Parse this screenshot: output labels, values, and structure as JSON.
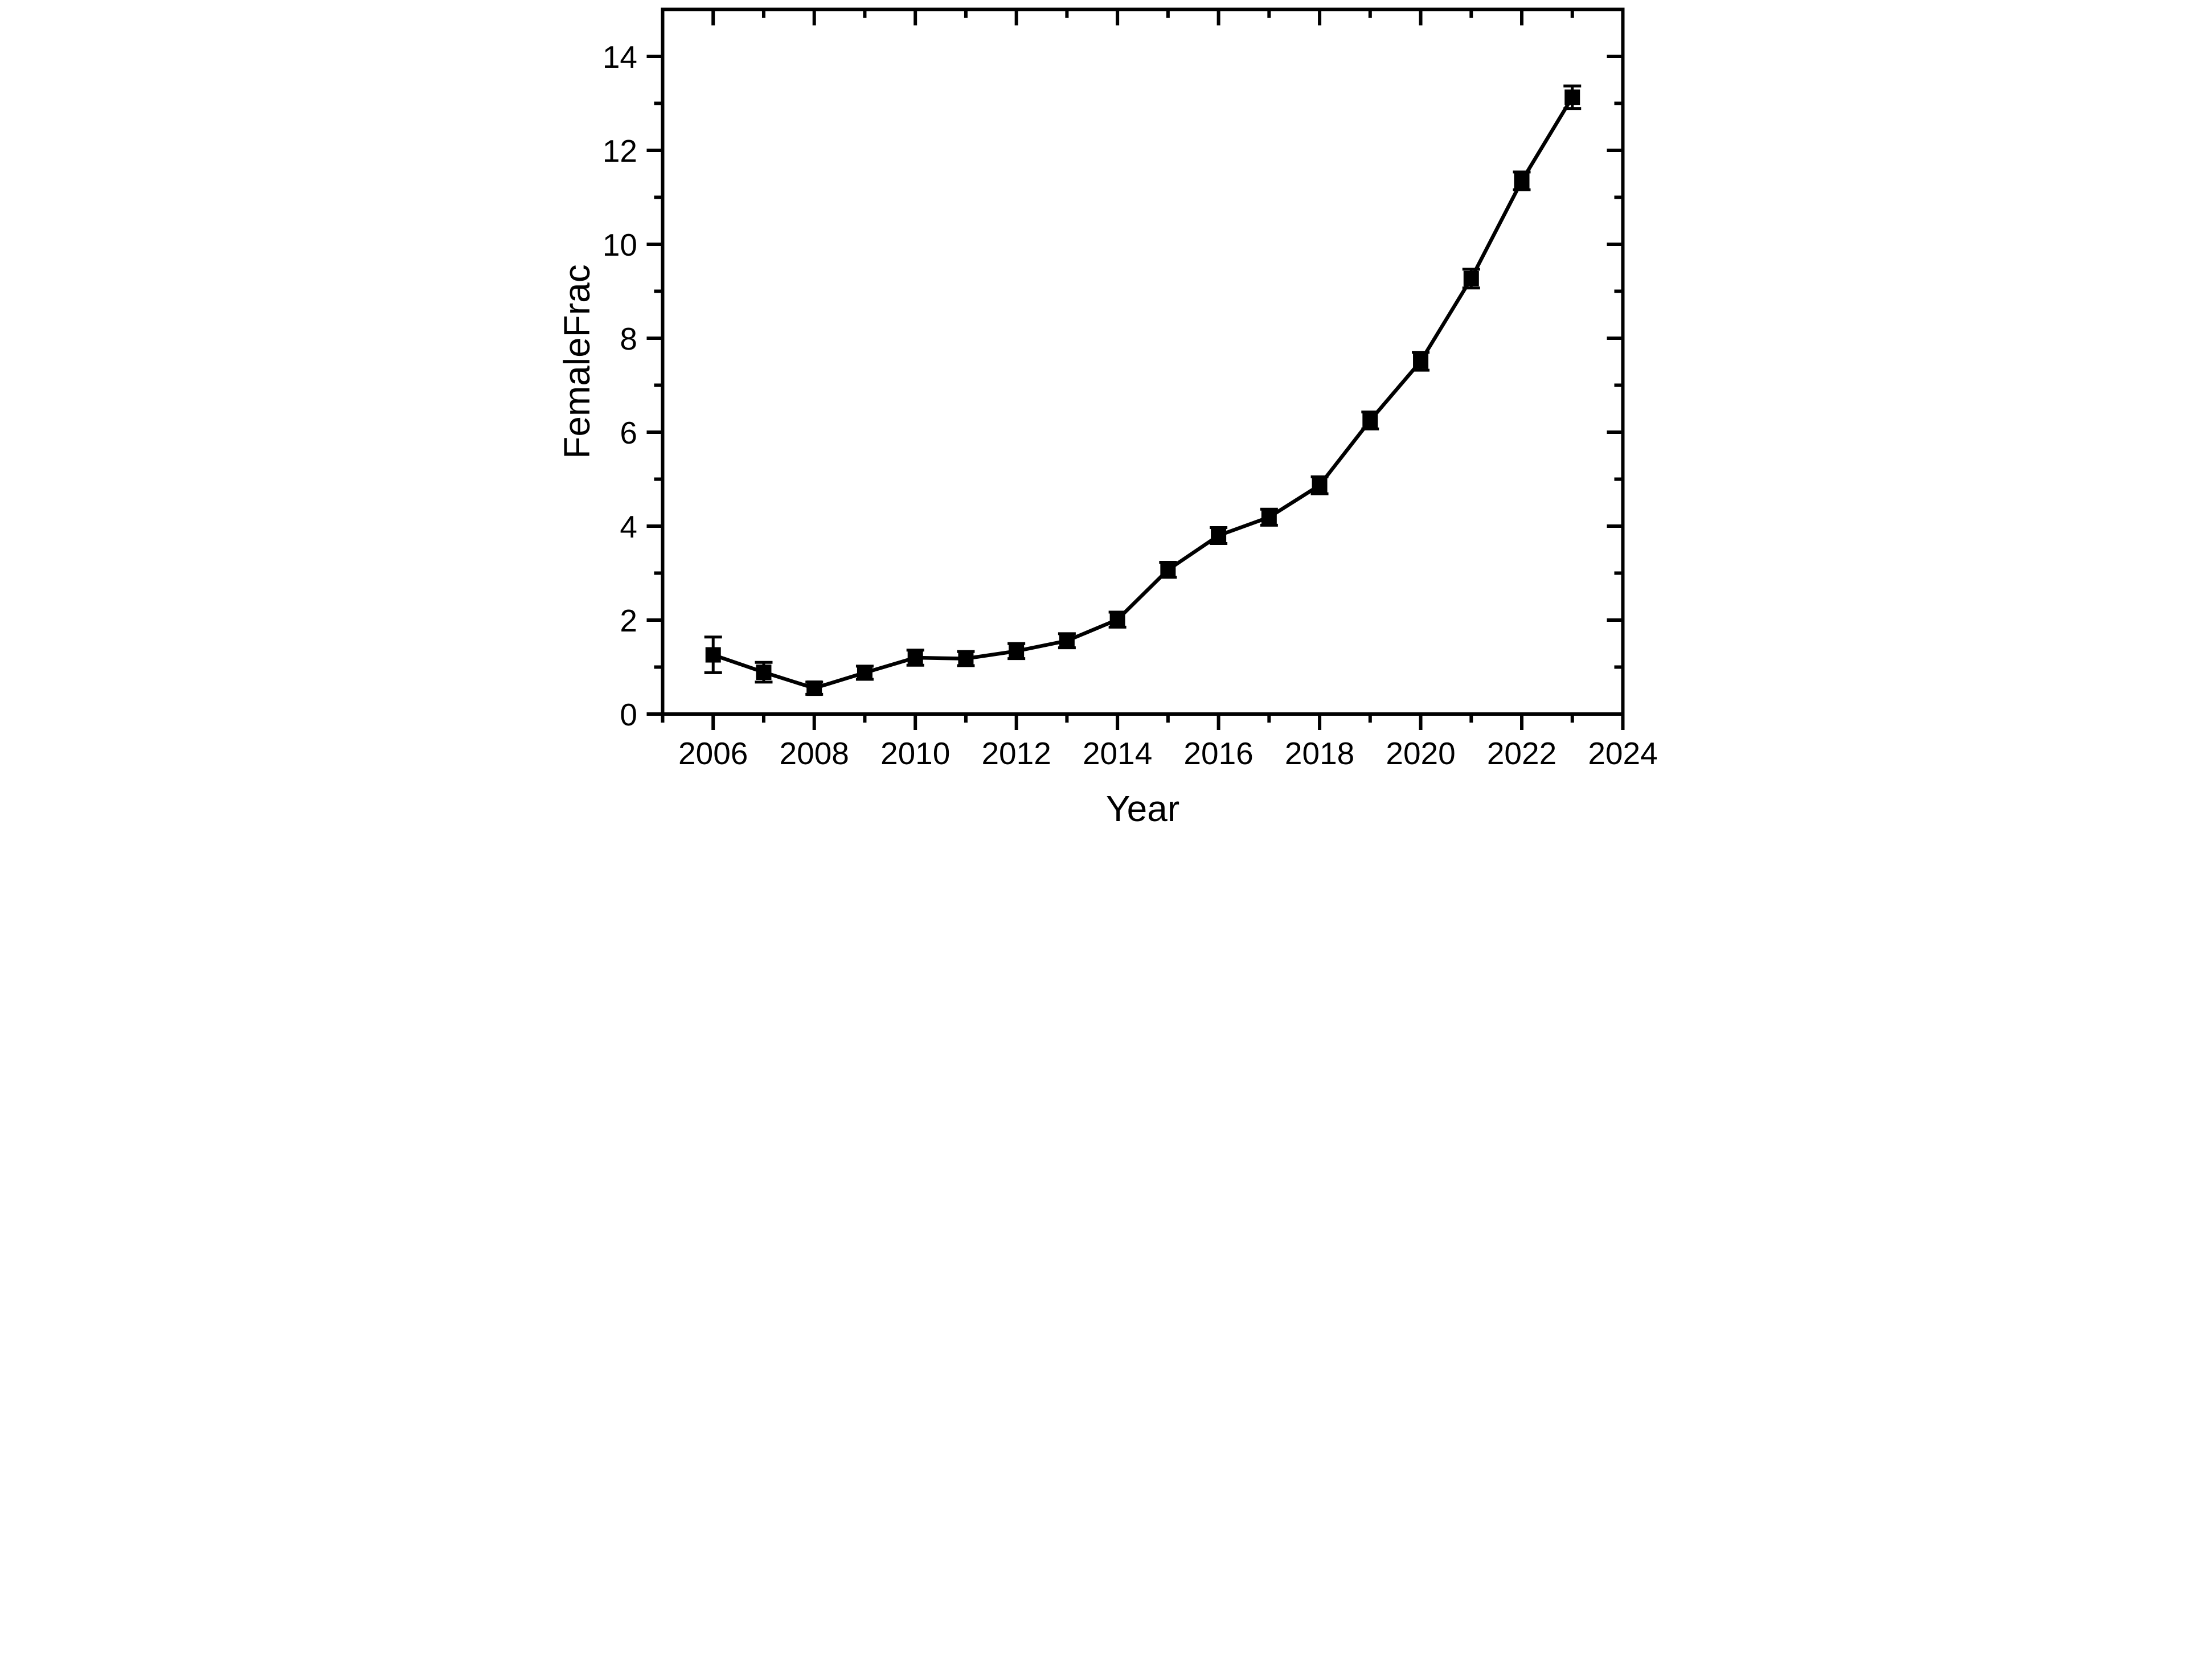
{
  "figure": {
    "background": "#ffffff",
    "axis_color": "#000000",
    "series_color": "#000000"
  },
  "axes": {
    "x_label": "Year",
    "y_label": "FemaleFrac",
    "x_tick_labels": [
      "2006",
      "2008",
      "2010",
      "2012",
      "2014",
      "2016",
      "2018",
      "2020",
      "2022",
      "2024"
    ],
    "y_tick_labels": [
      "0",
      "2",
      "4",
      "6",
      "8",
      "10",
      "12",
      "14"
    ],
    "x_major_ticks": [
      2006,
      2008,
      2010,
      2012,
      2014,
      2016,
      2018,
      2020,
      2022,
      2024
    ],
    "x_minor_ticks": [
      2005,
      2007,
      2009,
      2011,
      2013,
      2015,
      2017,
      2019,
      2021,
      2023
    ],
    "y_major_ticks": [
      0,
      2,
      4,
      6,
      8,
      10,
      12,
      14
    ],
    "y_minor_ticks": [
      1,
      3,
      5,
      7,
      9,
      11,
      13
    ]
  },
  "chart_data": {
    "type": "line",
    "title": "",
    "xlabel": "Year",
    "ylabel": "FemaleFrac",
    "xlim": [
      2005,
      2024
    ],
    "ylim": [
      0,
      15
    ],
    "grid": false,
    "legend": false,
    "marker": "filled-square",
    "error_bars": true,
    "line_color": "#000000",
    "frame": "box-with-mirrored-inward-ticks",
    "series": [
      {
        "name": "FemaleFrac",
        "x": [
          2006,
          2007,
          2008,
          2009,
          2010,
          2011,
          2012,
          2013,
          2014,
          2015,
          2016,
          2017,
          2018,
          2019,
          2020,
          2021,
          2022,
          2023
        ],
        "y": [
          1.26,
          0.89,
          0.55,
          0.88,
          1.2,
          1.18,
          1.34,
          1.56,
          2.01,
          3.07,
          3.8,
          4.19,
          4.87,
          6.25,
          7.51,
          9.27,
          11.35,
          13.13
        ],
        "yerr": [
          0.38,
          0.21,
          0.13,
          0.14,
          0.16,
          0.15,
          0.16,
          0.15,
          0.16,
          0.16,
          0.17,
          0.17,
          0.18,
          0.18,
          0.19,
          0.2,
          0.19,
          0.24
        ]
      }
    ]
  }
}
